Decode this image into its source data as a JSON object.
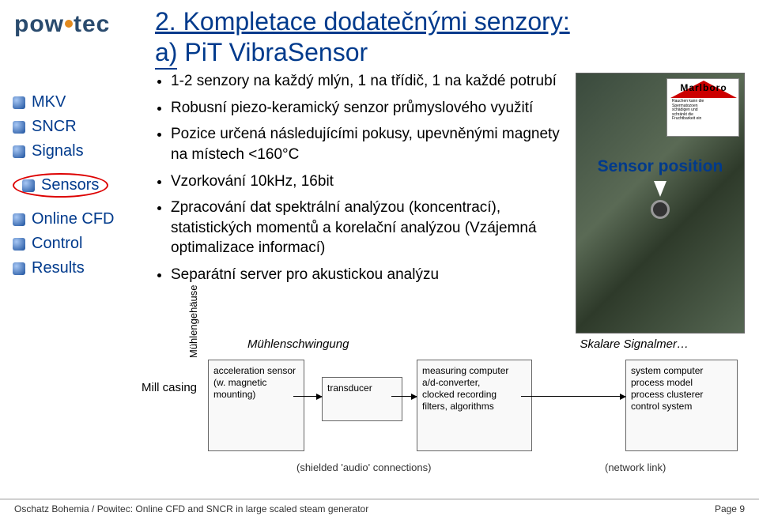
{
  "logo_text_left": "pow",
  "logo_text_right": "tec",
  "title_main": "2. Kompletace dodatečnými senzory:",
  "title_sub_underlined": "a)",
  "title_sub_rest": " PiT VibraSensor",
  "nav": [
    {
      "label": "MKV",
      "circled": false
    },
    {
      "label": "SNCR",
      "circled": false
    },
    {
      "label": "Signals",
      "circled": false
    },
    {
      "label": "Sensors",
      "circled": true
    },
    {
      "label": "Online CFD",
      "circled": false
    },
    {
      "label": "Control",
      "circled": false
    },
    {
      "label": "Results",
      "circled": false
    }
  ],
  "bullets": [
    "1-2 senzory na každý mlýn, 1 na třídič, 1 na každé potrubí",
    "Robusní piezo-keramický senzor průmyslového využití",
    "Pozice určená následujícími pokusy, upevněnými magnety na místech <160°C",
    "Vzorkování 10kHz, 16bit",
    "Zpracování dat spektrální analýzou (koncentrací), statistických momentů a korelační analýzou (Vzájemná optimalizace informací)",
    "Separátní server pro akustickou analýzu"
  ],
  "sensor_label": "Sensor position",
  "marlboro_brand": "Marlboro",
  "marlboro_warn": "Rauchen kann die Spermatozoen schädigen und schränkt die Fruchtbarkeit ein",
  "diagram": {
    "left_title": "Mühlenschwingung",
    "right_title": "Skalare Signalmer…",
    "mill_casing": "Mill casing",
    "vert_label": "Mühlengehäuse",
    "box1": "acceleration sensor\n(w. magnetic mounting)",
    "box2": "transducer",
    "box3": "measuring computer\na/d-converter,\nclocked recording\nfilters, algorithms",
    "box4": "system computer\nprocess model\nprocess clusterer\ncontrol system",
    "caption_left": "(shielded 'audio' connections)",
    "caption_right": "(network link)"
  },
  "footer_left": "Oschatz Bohemia / Powitec: Online CFD and SNCR in large scaled steam generator",
  "footer_right": "Page 9"
}
